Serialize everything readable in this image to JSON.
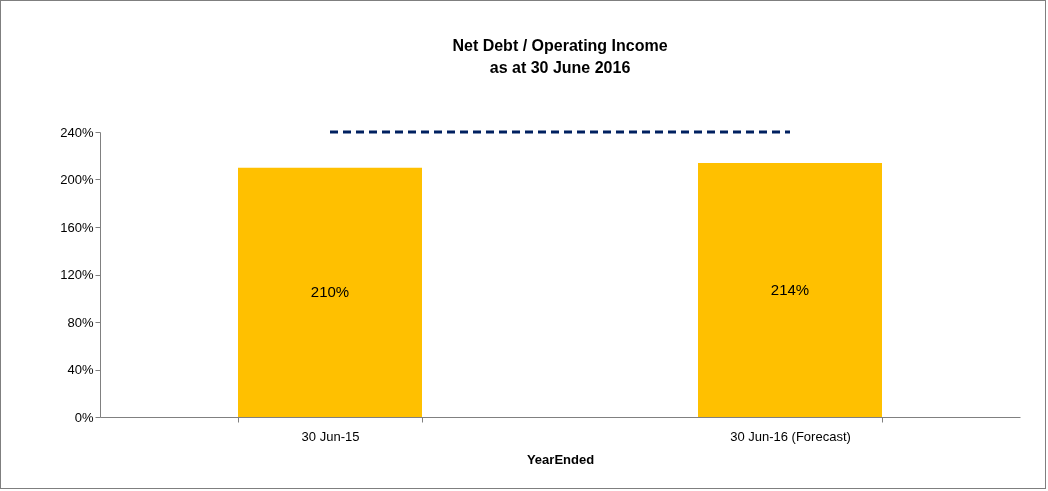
{
  "chart_data": {
    "type": "bar",
    "title": "Net Debt / Operating Income",
    "subtitle": "as at 30 June 2016",
    "xlabel": "YearEnded",
    "categories": [
      "30 Jun-15",
      "30 Jun-16 (Forecast)"
    ],
    "series": [
      {
        "color": "#ffc000",
        "values": [
          210,
          214
        ],
        "value_labels": [
          "210%",
          "214%"
        ]
      },
      {
        "type": "line",
        "color": "#002060",
        "values": [
          240,
          240
        ],
        "line_style": "dashed",
        "marker": "none"
      }
    ],
    "ylim": [
      0,
      240
    ],
    "yticks": [
      {
        "value": 0,
        "label": "0%"
      },
      {
        "value": 40,
        "label": "40%"
      },
      {
        "value": 80,
        "label": "80%"
      },
      {
        "value": 120,
        "label": "120%"
      },
      {
        "value": 160,
        "label": "160%"
      },
      {
        "value": 200,
        "label": "200%"
      },
      {
        "value": 240,
        "label": "240%"
      }
    ],
    "grid": false
  }
}
